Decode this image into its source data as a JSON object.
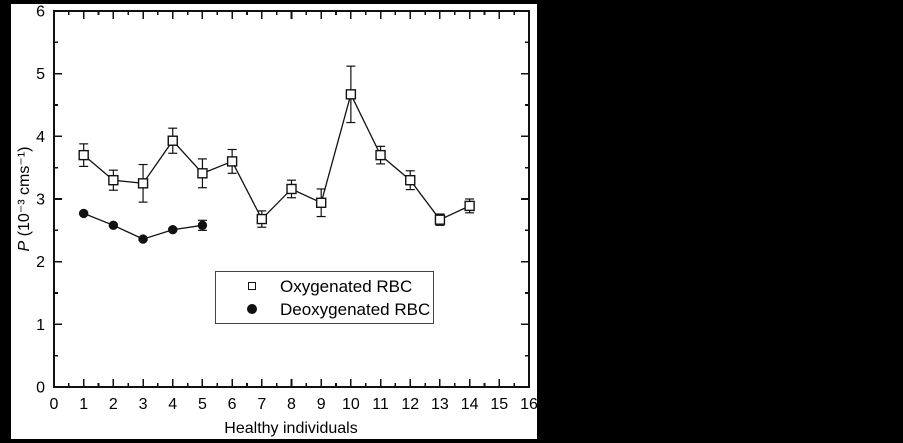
{
  "figure": {
    "background": "#ffffff",
    "letterbox_color": "#000000",
    "line_color": "#111111"
  },
  "chart_data": {
    "type": "line",
    "title": "",
    "xlabel": "Healthy individuals",
    "ylabel_italic": "P",
    "ylabel_rest": " (10⁻³ cms⁻¹)",
    "xlim": [
      0,
      16
    ],
    "ylim": [
      0,
      6
    ],
    "x_major_step": 1,
    "x_minor_step": 0.5,
    "y_major_step": 1,
    "y_minor_step": 0.5,
    "grid": false,
    "x_tick_labels": [
      "0",
      "1",
      "2",
      "3",
      "4",
      "5",
      "6",
      "7",
      "8",
      "9",
      "10",
      "11",
      "12",
      "13",
      "14",
      "15",
      "16"
    ],
    "y_tick_labels": [
      "0",
      "1",
      "2",
      "3",
      "4",
      "5",
      "6"
    ],
    "legend_position": "inside-lower-center",
    "series": [
      {
        "name": "Oxygenated RBC",
        "marker": "open-square",
        "x": [
          1,
          2,
          3,
          4,
          5,
          6,
          7,
          8,
          9,
          10,
          11,
          12,
          13,
          14
        ],
        "values": [
          3.7,
          3.3,
          3.25,
          3.93,
          3.41,
          3.6,
          2.68,
          3.16,
          2.94,
          4.67,
          3.7,
          3.3,
          2.67,
          2.89
        ],
        "errors": [
          0.18,
          0.16,
          0.3,
          0.2,
          0.23,
          0.19,
          0.13,
          0.14,
          0.22,
          0.45,
          0.14,
          0.15,
          0.09,
          0.11
        ]
      },
      {
        "name": "Deoxygenated RBC",
        "marker": "filled-circle",
        "x": [
          1,
          2,
          3,
          4,
          5
        ],
        "values": [
          2.77,
          2.58,
          2.36,
          2.51,
          2.58
        ],
        "errors": [
          0.02,
          0.02,
          0.02,
          0.02,
          0.08
        ]
      }
    ]
  }
}
